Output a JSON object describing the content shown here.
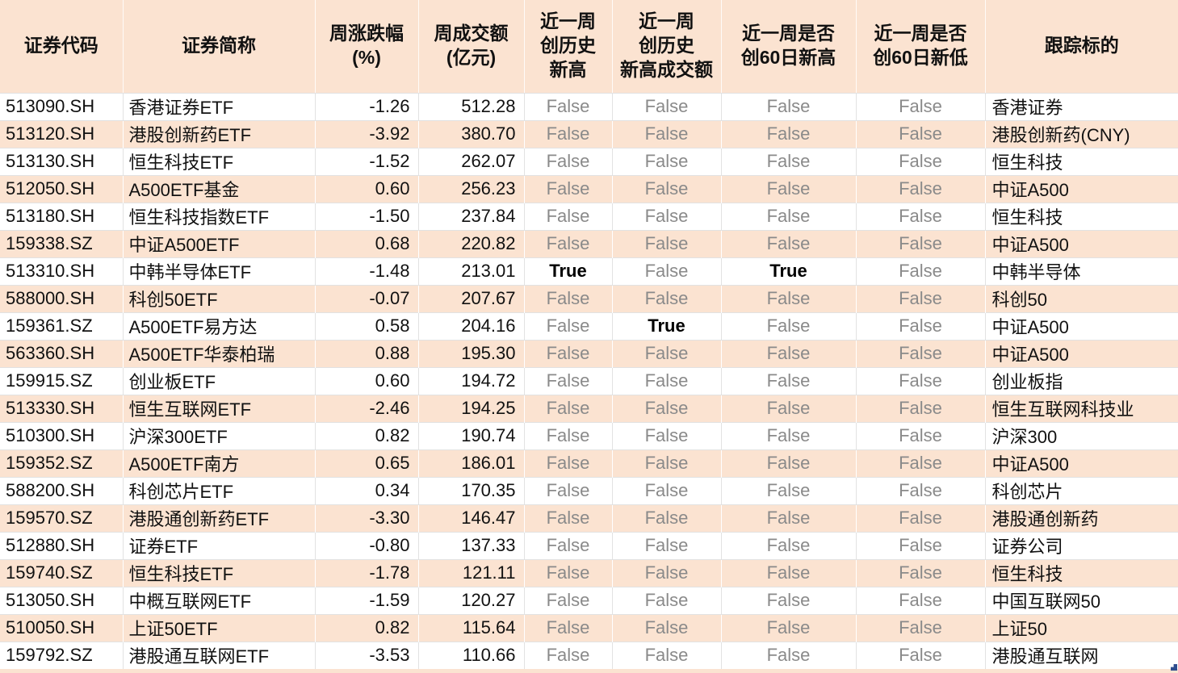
{
  "colors": {
    "stripe": "#fbe3d1",
    "grid": "#e2e2e2",
    "false_text": "#8a8a8a",
    "true_text": "#000000",
    "watermark_blue": "#2e4d8e"
  },
  "table": {
    "columns": [
      {
        "key": "code",
        "label": "证券代码"
      },
      {
        "key": "name",
        "label": "证券简称"
      },
      {
        "key": "weekly_change_pct",
        "label": "周涨跌幅\n(%)"
      },
      {
        "key": "weekly_turnover",
        "label": "周成交额\n(亿元)"
      },
      {
        "key": "week_record_high",
        "label": "近一周\n创历史\n新高"
      },
      {
        "key": "week_record_high_turnover",
        "label": "近一周\n创历史\n新高成交额"
      },
      {
        "key": "week_60d_high",
        "label": "近一周是否\n创60日新高"
      },
      {
        "key": "week_60d_low",
        "label": "近一周是否\n创60日新低"
      },
      {
        "key": "tracking_target",
        "label": "跟踪标的"
      }
    ],
    "rows": [
      {
        "code": "513090.SH",
        "name": "香港证券ETF",
        "weekly_change_pct": "-1.26",
        "weekly_turnover": "512.28",
        "week_record_high": "False",
        "week_record_high_turnover": "False",
        "week_60d_high": "False",
        "week_60d_low": "False",
        "tracking_target": "香港证券"
      },
      {
        "code": "513120.SH",
        "name": "港股创新药ETF",
        "weekly_change_pct": "-3.92",
        "weekly_turnover": "380.70",
        "week_record_high": "False",
        "week_record_high_turnover": "False",
        "week_60d_high": "False",
        "week_60d_low": "False",
        "tracking_target": "港股创新药(CNY)"
      },
      {
        "code": "513130.SH",
        "name": "恒生科技ETF",
        "weekly_change_pct": "-1.52",
        "weekly_turnover": "262.07",
        "week_record_high": "False",
        "week_record_high_turnover": "False",
        "week_60d_high": "False",
        "week_60d_low": "False",
        "tracking_target": "恒生科技"
      },
      {
        "code": "512050.SH",
        "name": "A500ETF基金",
        "weekly_change_pct": "0.60",
        "weekly_turnover": "256.23",
        "week_record_high": "False",
        "week_record_high_turnover": "False",
        "week_60d_high": "False",
        "week_60d_low": "False",
        "tracking_target": "中证A500"
      },
      {
        "code": "513180.SH",
        "name": "恒生科技指数ETF",
        "weekly_change_pct": "-1.50",
        "weekly_turnover": "237.84",
        "week_record_high": "False",
        "week_record_high_turnover": "False",
        "week_60d_high": "False",
        "week_60d_low": "False",
        "tracking_target": "恒生科技"
      },
      {
        "code": "159338.SZ",
        "name": "中证A500ETF",
        "weekly_change_pct": "0.68",
        "weekly_turnover": "220.82",
        "week_record_high": "False",
        "week_record_high_turnover": "False",
        "week_60d_high": "False",
        "week_60d_low": "False",
        "tracking_target": "中证A500"
      },
      {
        "code": "513310.SH",
        "name": "中韩半导体ETF",
        "weekly_change_pct": "-1.48",
        "weekly_turnover": "213.01",
        "week_record_high": "True",
        "week_record_high_turnover": "False",
        "week_60d_high": "True",
        "week_60d_low": "False",
        "tracking_target": "中韩半导体"
      },
      {
        "code": "588000.SH",
        "name": "科创50ETF",
        "weekly_change_pct": "-0.07",
        "weekly_turnover": "207.67",
        "week_record_high": "False",
        "week_record_high_turnover": "False",
        "week_60d_high": "False",
        "week_60d_low": "False",
        "tracking_target": "科创50"
      },
      {
        "code": "159361.SZ",
        "name": "A500ETF易方达",
        "weekly_change_pct": "0.58",
        "weekly_turnover": "204.16",
        "week_record_high": "False",
        "week_record_high_turnover": "True",
        "week_60d_high": "False",
        "week_60d_low": "False",
        "tracking_target": "中证A500"
      },
      {
        "code": "563360.SH",
        "name": "A500ETF华泰柏瑞",
        "weekly_change_pct": "0.88",
        "weekly_turnover": "195.30",
        "week_record_high": "False",
        "week_record_high_turnover": "False",
        "week_60d_high": "False",
        "week_60d_low": "False",
        "tracking_target": "中证A500"
      },
      {
        "code": "159915.SZ",
        "name": "创业板ETF",
        "weekly_change_pct": "0.60",
        "weekly_turnover": "194.72",
        "week_record_high": "False",
        "week_record_high_turnover": "False",
        "week_60d_high": "False",
        "week_60d_low": "False",
        "tracking_target": "创业板指"
      },
      {
        "code": "513330.SH",
        "name": "恒生互联网ETF",
        "weekly_change_pct": "-2.46",
        "weekly_turnover": "194.25",
        "week_record_high": "False",
        "week_record_high_turnover": "False",
        "week_60d_high": "False",
        "week_60d_low": "False",
        "tracking_target": "恒生互联网科技业"
      },
      {
        "code": "510300.SH",
        "name": "沪深300ETF",
        "weekly_change_pct": "0.82",
        "weekly_turnover": "190.74",
        "week_record_high": "False",
        "week_record_high_turnover": "False",
        "week_60d_high": "False",
        "week_60d_low": "False",
        "tracking_target": "沪深300"
      },
      {
        "code": "159352.SZ",
        "name": "A500ETF南方",
        "weekly_change_pct": "0.65",
        "weekly_turnover": "186.01",
        "week_record_high": "False",
        "week_record_high_turnover": "False",
        "week_60d_high": "False",
        "week_60d_low": "False",
        "tracking_target": "中证A500"
      },
      {
        "code": "588200.SH",
        "name": "科创芯片ETF",
        "weekly_change_pct": "0.34",
        "weekly_turnover": "170.35",
        "week_record_high": "False",
        "week_record_high_turnover": "False",
        "week_60d_high": "False",
        "week_60d_low": "False",
        "tracking_target": "科创芯片"
      },
      {
        "code": "159570.SZ",
        "name": "港股通创新药ETF",
        "weekly_change_pct": "-3.30",
        "weekly_turnover": "146.47",
        "week_record_high": "False",
        "week_record_high_turnover": "False",
        "week_60d_high": "False",
        "week_60d_low": "False",
        "tracking_target": "港股通创新药"
      },
      {
        "code": "512880.SH",
        "name": "证券ETF",
        "weekly_change_pct": "-0.80",
        "weekly_turnover": "137.33",
        "week_record_high": "False",
        "week_record_high_turnover": "False",
        "week_60d_high": "False",
        "week_60d_low": "False",
        "tracking_target": "证券公司"
      },
      {
        "code": "159740.SZ",
        "name": "恒生科技ETF",
        "weekly_change_pct": "-1.78",
        "weekly_turnover": "121.11",
        "week_record_high": "False",
        "week_record_high_turnover": "False",
        "week_60d_high": "False",
        "week_60d_low": "False",
        "tracking_target": "恒生科技"
      },
      {
        "code": "513050.SH",
        "name": "中概互联网ETF",
        "weekly_change_pct": "-1.59",
        "weekly_turnover": "120.27",
        "week_record_high": "False",
        "week_record_high_turnover": "False",
        "week_60d_high": "False",
        "week_60d_low": "False",
        "tracking_target": "中国互联网50"
      },
      {
        "code": "510050.SH",
        "name": "上证50ETF",
        "weekly_change_pct": "0.82",
        "weekly_turnover": "115.64",
        "week_record_high": "False",
        "week_record_high_turnover": "False",
        "week_60d_high": "False",
        "week_60d_low": "False",
        "tracking_target": "上证50"
      },
      {
        "code": "159792.SZ",
        "name": "港股通互联网ETF",
        "weekly_change_pct": "-3.53",
        "weekly_turnover": "110.66",
        "week_record_high": "False",
        "week_record_high_turnover": "False",
        "week_60d_high": "False",
        "week_60d_low": "False",
        "tracking_target": "港股通互联网"
      }
    ]
  }
}
